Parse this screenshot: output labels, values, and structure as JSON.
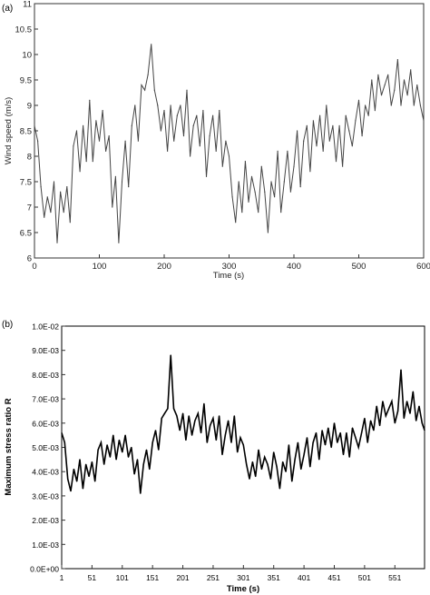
{
  "chart_data": [
    {
      "type": "line",
      "panel_label": "(a)",
      "xlabel": "Time (s)",
      "ylabel": "Wind speed (m/s)",
      "xlim": [
        0,
        600
      ],
      "ylim": [
        6,
        11
      ],
      "xticks": [
        "0",
        "100",
        "200",
        "300",
        "400",
        "500",
        "600"
      ],
      "yticks": [
        "6",
        "6.5",
        "7",
        "7.5",
        "8",
        "8.5",
        "9",
        "9.5",
        "10",
        "10.5",
        "11"
      ],
      "grid": false,
      "series": [
        {
          "line_color": "#444444",
          "x": [
            0,
            5,
            10,
            15,
            20,
            25,
            30,
            35,
            40,
            45,
            50,
            55,
            60,
            65,
            70,
            75,
            80,
            85,
            90,
            95,
            100,
            105,
            110,
            115,
            120,
            125,
            130,
            135,
            140,
            145,
            150,
            155,
            160,
            165,
            170,
            175,
            180,
            185,
            190,
            195,
            200,
            205,
            210,
            215,
            220,
            225,
            230,
            235,
            240,
            245,
            250,
            255,
            260,
            265,
            270,
            275,
            280,
            285,
            290,
            295,
            300,
            305,
            310,
            315,
            320,
            325,
            330,
            335,
            340,
            345,
            350,
            355,
            360,
            365,
            370,
            375,
            380,
            385,
            390,
            395,
            400,
            405,
            410,
            415,
            420,
            425,
            430,
            435,
            440,
            445,
            450,
            455,
            460,
            465,
            470,
            475,
            480,
            485,
            490,
            495,
            500,
            505,
            510,
            515,
            520,
            525,
            530,
            535,
            540,
            545,
            550,
            555,
            560,
            565,
            570,
            575,
            580,
            585,
            590,
            595,
            600
          ],
          "y": [
            8.6,
            8.3,
            7.4,
            6.8,
            7.2,
            6.9,
            7.5,
            6.3,
            7.3,
            6.9,
            7.4,
            6.7,
            8.2,
            8.5,
            7.7,
            8.6,
            7.9,
            9.1,
            7.9,
            8.7,
            8.3,
            8.9,
            8.1,
            8.4,
            7.0,
            7.6,
            6.3,
            7.5,
            8.3,
            7.4,
            8.6,
            9.0,
            8.3,
            9.4,
            9.3,
            9.6,
            10.2,
            9.3,
            9.0,
            8.5,
            8.9,
            8.1,
            9.0,
            8.3,
            8.8,
            9.0,
            8.4,
            9.3,
            8.0,
            8.6,
            8.8,
            8.2,
            8.9,
            7.6,
            8.4,
            8.8,
            8.1,
            8.9,
            7.8,
            8.3,
            8.0,
            7.2,
            6.7,
            7.5,
            6.9,
            7.9,
            7.1,
            7.6,
            7.3,
            6.9,
            7.8,
            7.3,
            6.5,
            7.5,
            7.2,
            8.1,
            6.9,
            7.5,
            8.1,
            7.3,
            7.8,
            8.5,
            7.4,
            8.3,
            8.6,
            7.7,
            8.7,
            8.2,
            8.8,
            8.1,
            9.0,
            8.3,
            8.6,
            7.9,
            8.6,
            7.8,
            8.8,
            8.5,
            8.2,
            8.7,
            9.1,
            8.4,
            9.0,
            8.8,
            9.5,
            8.9,
            9.6,
            9.2,
            9.4,
            9.6,
            9.0,
            9.3,
            9.9,
            9.0,
            9.5,
            9.2,
            9.7,
            9.0,
            9.4,
            9.0,
            8.7
          ]
        }
      ]
    },
    {
      "type": "line",
      "panel_label": "(b)",
      "xlabel": "Time (s)",
      "ylabel": "Maximum stress ratio R",
      "xlim": [
        1,
        600
      ],
      "ylim": [
        0,
        0.01
      ],
      "xticks": [
        "1",
        "51",
        "101",
        "151",
        "201",
        "251",
        "301",
        "351",
        "401",
        "451",
        "501",
        "551"
      ],
      "yticks": [
        "0.0E+00",
        "1.0E-03",
        "2.0E-03",
        "3.0E-03",
        "4.0E-03",
        "5.0E-03",
        "6.0E-03",
        "7.0E-03",
        "8.0E-03",
        "9.0E-03",
        "1.0E-02"
      ],
      "grid": false,
      "series": [
        {
          "line_color": "#000000",
          "x": [
            1,
            6,
            11,
            16,
            21,
            26,
            31,
            36,
            41,
            46,
            51,
            56,
            61,
            66,
            71,
            76,
            81,
            86,
            91,
            96,
            101,
            106,
            111,
            116,
            121,
            126,
            131,
            136,
            141,
            146,
            151,
            156,
            161,
            166,
            171,
            176,
            181,
            186,
            191,
            196,
            201,
            206,
            211,
            216,
            221,
            226,
            231,
            236,
            241,
            246,
            251,
            256,
            261,
            266,
            271,
            276,
            281,
            286,
            291,
            296,
            301,
            306,
            311,
            316,
            321,
            326,
            331,
            336,
            341,
            346,
            351,
            356,
            361,
            366,
            371,
            376,
            381,
            386,
            391,
            396,
            401,
            406,
            411,
            416,
            421,
            426,
            431,
            436,
            441,
            446,
            451,
            456,
            461,
            466,
            471,
            476,
            481,
            486,
            491,
            496,
            501,
            506,
            511,
            516,
            521,
            526,
            531,
            536,
            541,
            546,
            551,
            556,
            561,
            566,
            571,
            576,
            581,
            586,
            591,
            596,
            600
          ],
          "y": [
            0.0056,
            0.0052,
            0.0037,
            0.0032,
            0.0041,
            0.0036,
            0.0045,
            0.0033,
            0.0043,
            0.0038,
            0.0044,
            0.0036,
            0.0049,
            0.0052,
            0.0043,
            0.0051,
            0.0046,
            0.0055,
            0.0045,
            0.0053,
            0.0048,
            0.0055,
            0.0046,
            0.005,
            0.0039,
            0.0045,
            0.0031,
            0.0043,
            0.0049,
            0.0041,
            0.0052,
            0.0057,
            0.0049,
            0.0062,
            0.0064,
            0.0066,
            0.0088,
            0.0066,
            0.0063,
            0.0057,
            0.0064,
            0.0053,
            0.0063,
            0.0055,
            0.0061,
            0.0064,
            0.0056,
            0.0068,
            0.0052,
            0.0059,
            0.0062,
            0.0053,
            0.0063,
            0.0047,
            0.0055,
            0.0061,
            0.0052,
            0.0063,
            0.0048,
            0.0054,
            0.0051,
            0.0043,
            0.0037,
            0.0044,
            0.0038,
            0.0049,
            0.0041,
            0.0046,
            0.0043,
            0.0037,
            0.0048,
            0.0042,
            0.0033,
            0.0044,
            0.004,
            0.0051,
            0.0036,
            0.0045,
            0.0052,
            0.0041,
            0.0047,
            0.0054,
            0.0042,
            0.0052,
            0.0056,
            0.0045,
            0.0057,
            0.0051,
            0.0058,
            0.005,
            0.006,
            0.0052,
            0.0056,
            0.0047,
            0.0056,
            0.0046,
            0.0058,
            0.0054,
            0.005,
            0.0056,
            0.0062,
            0.0052,
            0.0061,
            0.0057,
            0.0067,
            0.0059,
            0.0069,
            0.0063,
            0.0066,
            0.0069,
            0.006,
            0.0065,
            0.0082,
            0.0062,
            0.0069,
            0.0064,
            0.0073,
            0.0061,
            0.0067,
            0.006,
            0.0057
          ]
        }
      ]
    }
  ]
}
